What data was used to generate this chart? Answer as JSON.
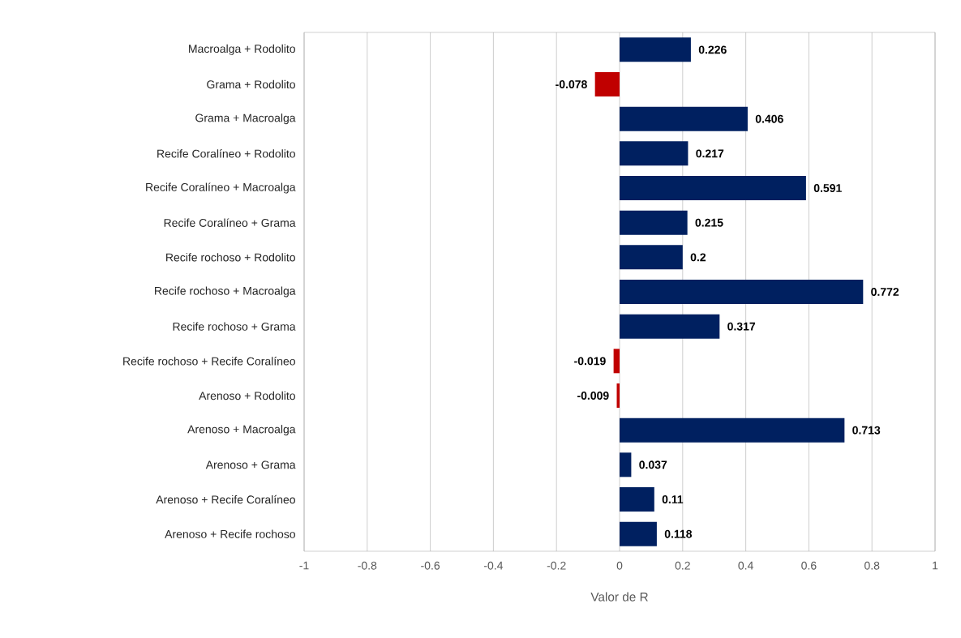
{
  "chart_data": {
    "type": "bar",
    "orientation": "horizontal",
    "xlabel": "Valor de R",
    "categories": [
      "Macroalga + Rodolito",
      "Grama + Rodolito",
      "Grama + Macroalga",
      "Recife Coralíneo + Rodolito",
      "Recife Coralíneo + Macroalga",
      "Recife Coralíneo + Grama",
      "Recife rochoso + Rodolito",
      "Recife rochoso + Macroalga",
      "Recife rochoso + Grama",
      "Recife rochoso + Recife Coralíneo",
      "Arenoso + Rodolito",
      "Arenoso + Macroalga",
      "Arenoso + Grama",
      "Arenoso + Recife Coralíneo",
      "Arenoso + Recife rochoso"
    ],
    "values": [
      0.226,
      -0.078,
      0.406,
      0.217,
      0.591,
      0.215,
      0.2,
      0.772,
      0.317,
      -0.019,
      -0.009,
      0.713,
      0.037,
      0.11,
      0.118
    ],
    "value_labels": [
      "0.226",
      "-0.078",
      "0.406",
      "0.217",
      "0.591",
      "0.215",
      "0.2",
      "0.772",
      "0.317",
      "-0.019",
      "-0.009",
      "0.713",
      "0.037",
      "0.11",
      "0.118"
    ],
    "colors": [
      "#002060",
      "#c00000",
      "#002060",
      "#002060",
      "#002060",
      "#002060",
      "#002060",
      "#002060",
      "#002060",
      "#c00000",
      "#c00000",
      "#002060",
      "#002060",
      "#002060",
      "#002060"
    ],
    "xlim": [
      -1,
      1
    ],
    "xticks": [
      -1,
      -0.8,
      -0.6,
      -0.4,
      -0.2,
      0,
      0.2,
      0.4,
      0.6,
      0.8,
      1
    ],
    "grid": "x"
  }
}
